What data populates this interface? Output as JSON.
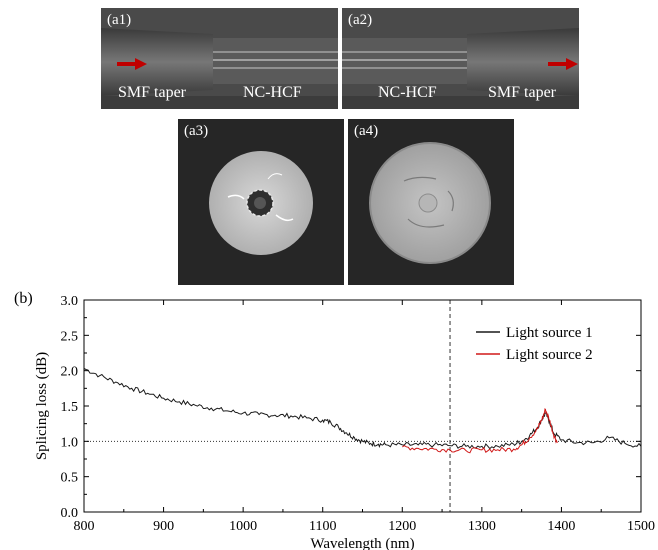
{
  "photos": [
    {
      "label": "(a1)",
      "left_text": "SMF taper",
      "right_text": "NC-HCF"
    },
    {
      "label": "(a2)",
      "left_text": "NC-HCF",
      "right_text": "SMF taper"
    },
    {
      "label": "(a3)"
    },
    {
      "label": "(a4)"
    }
  ],
  "colors": {
    "arrow": "#c00000",
    "series1": "#1a1a1a",
    "series2": "#d01818"
  },
  "chart_data": {
    "type": "line",
    "label": "(b)",
    "xlabel": "Wavelength (nm)",
    "ylabel": "Splicing loss (dB)",
    "xlim": [
      800,
      1500
    ],
    "ylim": [
      0.0,
      3.0
    ],
    "xticks": [
      800,
      900,
      1000,
      1100,
      1200,
      1300,
      1400,
      1500
    ],
    "yticks": [
      "0.0",
      "0.5",
      "1.0",
      "1.5",
      "2.0",
      "2.5",
      "3.0"
    ],
    "reference_lines": {
      "vertical_x": 1260,
      "horizontal_y": 1.0
    },
    "legend_position": "top-right",
    "series": [
      {
        "name": "Light source 1",
        "x": [
          800,
          820,
          840,
          860,
          880,
          900,
          920,
          940,
          960,
          980,
          1000,
          1020,
          1040,
          1060,
          1080,
          1100,
          1110,
          1120,
          1130,
          1140,
          1150,
          1160,
          1170,
          1180,
          1200,
          1220,
          1240,
          1260,
          1280,
          1300,
          1320,
          1340,
          1350,
          1360,
          1370,
          1375,
          1380,
          1385,
          1390,
          1400,
          1420,
          1440,
          1460,
          1480,
          1500
        ],
        "y": [
          2.03,
          1.93,
          1.84,
          1.75,
          1.68,
          1.61,
          1.56,
          1.51,
          1.47,
          1.43,
          1.4,
          1.38,
          1.37,
          1.36,
          1.33,
          1.3,
          1.27,
          1.2,
          1.12,
          1.05,
          1.0,
          0.97,
          0.96,
          0.95,
          0.95,
          0.95,
          0.95,
          0.94,
          0.93,
          0.93,
          0.93,
          0.96,
          1.0,
          1.08,
          1.2,
          1.3,
          1.4,
          1.28,
          1.12,
          1.02,
          0.98,
          0.98,
          1.05,
          0.97,
          0.93
        ]
      },
      {
        "name": "Light source 2",
        "x": [
          1200,
          1220,
          1240,
          1260,
          1280,
          1300,
          1320,
          1340,
          1350,
          1360,
          1370,
          1375,
          1380,
          1385,
          1390,
          1395
        ],
        "y": [
          0.92,
          0.9,
          0.89,
          0.88,
          0.87,
          0.88,
          0.88,
          0.89,
          0.95,
          1.05,
          1.18,
          1.3,
          1.45,
          1.3,
          1.1,
          0.98
        ]
      }
    ]
  }
}
